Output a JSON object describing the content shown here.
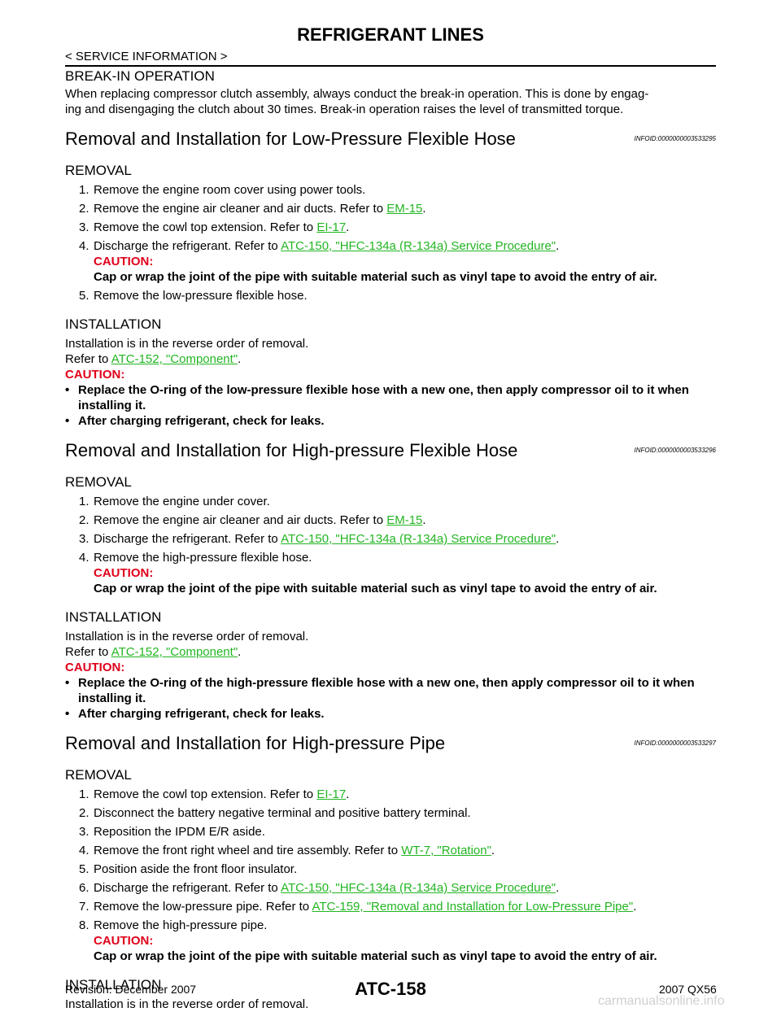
{
  "header": {
    "title": "REFRIGERANT LINES",
    "breadcrumb": "< SERVICE INFORMATION >"
  },
  "intro": {
    "heading": "BREAK-IN OPERATION",
    "lines": [
      "When replacing compressor clutch assembly, always conduct the break-in operation. This is done by engag-",
      "ing and disengaging the clutch about 30 times. Break-in operation raises the level of transmitted torque."
    ]
  },
  "sections": [
    {
      "heading": "Removal and Installation for Low-Pressure Flexible Hose",
      "infoid": "INFOID:0000000003533295",
      "blocks": [
        {
          "subheading": "REMOVAL",
          "steps": [
            {
              "num": "1.",
              "parts": [
                "Remove the engine room cover using power tools."
              ]
            },
            {
              "num": "2.",
              "parts": [
                "Remove the engine air cleaner and air ducts. Refer to ",
                {
                  "link": "EM-15"
                },
                "."
              ]
            },
            {
              "num": "3.",
              "parts": [
                "Remove the cowl top extension. Refer to ",
                {
                  "link": "EI-17"
                },
                "."
              ]
            },
            {
              "num": "4.",
              "parts": [
                "Discharge the refrigerant. Refer to ",
                {
                  "link": "ATC-150, \"HFC-134a (R-134a) Service Procedure\""
                },
                "."
              ],
              "caution": {
                "label": "CAUTION:",
                "text": "Cap or wrap the joint of the pipe with suitable material such as vinyl tape to avoid the entry of air."
              }
            },
            {
              "num": "5.",
              "parts": [
                "Remove the low-pressure flexible hose."
              ]
            }
          ]
        },
        {
          "subheading": "INSTALLATION",
          "lines": [
            [
              "Installation is in the reverse order of removal."
            ],
            [
              "Refer to ",
              {
                "link": "ATC-152, \"Component\""
              },
              "."
            ]
          ],
          "caution": {
            "label": "CAUTION:",
            "bullets": [
              "Replace the O-ring of the low-pressure flexible hose with a new one, then apply compressor oil to it when installing it.",
              "After charging refrigerant, check for leaks."
            ]
          }
        }
      ]
    },
    {
      "heading": "Removal and Installation for High-pressure Flexible Hose",
      "infoid": "INFOID:0000000003533296",
      "blocks": [
        {
          "subheading": "REMOVAL",
          "steps": [
            {
              "num": "1.",
              "parts": [
                "Remove the engine under cover."
              ]
            },
            {
              "num": "2.",
              "parts": [
                "Remove the engine air cleaner and air ducts. Refer to ",
                {
                  "link": "EM-15"
                },
                "."
              ]
            },
            {
              "num": "3.",
              "parts": [
                "Discharge the refrigerant. Refer to ",
                {
                  "link": "ATC-150, \"HFC-134a (R-134a) Service Procedure\""
                },
                "."
              ]
            },
            {
              "num": "4.",
              "parts": [
                "Remove the high-pressure flexible hose."
              ],
              "caution": {
                "label": "CAUTION:",
                "text": "Cap or wrap the joint of the pipe with suitable material such as vinyl tape to avoid the entry of air."
              }
            }
          ]
        },
        {
          "subheading": "INSTALLATION",
          "lines": [
            [
              "Installation is in the reverse order of removal."
            ],
            [
              "Refer to ",
              {
                "link": "ATC-152, \"Component\""
              },
              "."
            ]
          ],
          "caution": {
            "label": "CAUTION:",
            "bullets": [
              "Replace the O-ring of the high-pressure flexible hose with a new one, then apply compressor oil to it when installing it.",
              "After charging refrigerant, check for leaks."
            ]
          }
        }
      ]
    },
    {
      "heading": "Removal and Installation for High-pressure Pipe",
      "infoid": "INFOID:0000000003533297",
      "blocks": [
        {
          "subheading": "REMOVAL",
          "steps": [
            {
              "num": "1.",
              "parts": [
                "Remove the cowl top extension. Refer to ",
                {
                  "link": "EI-17"
                },
                "."
              ]
            },
            {
              "num": "2.",
              "parts": [
                "Disconnect the battery negative terminal and positive battery terminal."
              ]
            },
            {
              "num": "3.",
              "parts": [
                "Reposition the IPDM E/R aside."
              ]
            },
            {
              "num": "4.",
              "parts": [
                "Remove the front right wheel and tire assembly. Refer to ",
                {
                  "link": "WT-7, \"Rotation\""
                },
                "."
              ]
            },
            {
              "num": "5.",
              "parts": [
                "Position aside the front floor insulator."
              ]
            },
            {
              "num": "6.",
              "parts": [
                "Discharge the refrigerant. Refer to ",
                {
                  "link": "ATC-150, \"HFC-134a (R-134a) Service Procedure\""
                },
                "."
              ]
            },
            {
              "num": "7.",
              "parts": [
                "Remove the low-pressure pipe. Refer to ",
                {
                  "link": "ATC-159, \"Removal and Installation for Low-Pressure Pipe\""
                },
                "."
              ]
            },
            {
              "num": "8.",
              "parts": [
                "Remove the high-pressure pipe."
              ],
              "caution": {
                "label": "CAUTION:",
                "text": "Cap or wrap the joint of the pipe with suitable material such as vinyl tape to avoid the entry of air."
              }
            }
          ]
        },
        {
          "subheading": "INSTALLATION",
          "lines": [
            [
              "Installation is in the reverse order of removal."
            ]
          ]
        }
      ]
    }
  ],
  "footer": {
    "revision": "Revision: December 2007",
    "page": "ATC-158",
    "model": "2007 QX56",
    "watermark": "carmanualsonline.info"
  }
}
